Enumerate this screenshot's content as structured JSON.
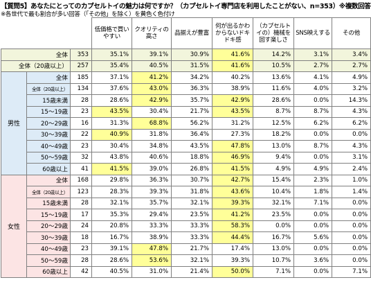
{
  "title": "【質問5】あなたにとってのカプセルトイの魅力は何ですか？（カプセルトイ専門店を利用したことがない、n=353）※複数回答可",
  "note": "※各世代で最も割合が多い回答（「その他」を除く）を黄色く色付け",
  "columns": [
    "低価格で買いやすい",
    "クオリティの高さ",
    "品揃えが豊富",
    "何が出るかわからないドキドキ感",
    "（カプセルトイの）機械を回す楽しさ",
    "SNS映えする",
    "その他"
  ],
  "groups": {
    "male": "男性",
    "female": "女性"
  },
  "highlight_color": "#ffff99",
  "rows": [
    {
      "section": "total",
      "label": "全体",
      "n": "353",
      "values": [
        "35.1%",
        "39.1%",
        "30.9%",
        "41.6%",
        "14.2%",
        "3.1%",
        "3.4%"
      ],
      "hl": 3
    },
    {
      "section": "total",
      "label": "全体（20歳以上）",
      "n": "257",
      "values": [
        "35.4%",
        "40.5%",
        "31.5%",
        "41.6%",
        "10.5%",
        "2.7%",
        "2.7%"
      ],
      "hl": 3
    },
    {
      "section": "male",
      "label": "全体",
      "n": "185",
      "values": [
        "37.1%",
        "41.2%",
        "34.2%",
        "40.2%",
        "13.6%",
        "4.1%",
        "4.9%"
      ],
      "hl": 1
    },
    {
      "section": "male",
      "label": "全体（20歳以上）",
      "n": "134",
      "values": [
        "37.6%",
        "43.0%",
        "36.3%",
        "38.9%",
        "11.6%",
        "4.0%",
        "3.2%"
      ],
      "hl": 1,
      "small": true
    },
    {
      "section": "male",
      "label": "15歳未満",
      "n": "28",
      "values": [
        "28.6%",
        "42.9%",
        "35.7%",
        "42.9%",
        "28.6%",
        "0.0%",
        "14.3%"
      ],
      "hl": [
        1,
        3
      ]
    },
    {
      "section": "male",
      "label": "15〜19歳",
      "n": "23",
      "values": [
        "43.5%",
        "30.4%",
        "21.7%",
        "43.5%",
        "8.7%",
        "8.7%",
        "4.3%"
      ],
      "hl": [
        0,
        3
      ]
    },
    {
      "section": "male",
      "label": "20〜29歳",
      "n": "16",
      "values": [
        "31.3%",
        "68.8%",
        "56.2%",
        "31.2%",
        "12.5%",
        "6.2%",
        "6.2%"
      ],
      "hl": 1
    },
    {
      "section": "male",
      "label": "30〜39歳",
      "n": "22",
      "values": [
        "40.9%",
        "31.8%",
        "36.4%",
        "27.3%",
        "18.2%",
        "0.0%",
        "0.0%"
      ],
      "hl": 0
    },
    {
      "section": "male",
      "label": "40〜49歳",
      "n": "23",
      "values": [
        "30.4%",
        "34.8%",
        "43.5%",
        "47.8%",
        "13.0%",
        "8.7%",
        "4.3%"
      ],
      "hl": 3
    },
    {
      "section": "male",
      "label": "50〜59歳",
      "n": "32",
      "values": [
        "43.8%",
        "40.6%",
        "18.8%",
        "46.9%",
        "9.4%",
        "0.0%",
        "3.1%"
      ],
      "hl": 3
    },
    {
      "section": "male",
      "label": "60歳以上",
      "n": "41",
      "values": [
        "41.5%",
        "39.0%",
        "26.8%",
        "41.5%",
        "4.9%",
        "4.9%",
        "2.4%"
      ],
      "hl": [
        0,
        3
      ]
    },
    {
      "section": "female",
      "label": "全体",
      "n": "168",
      "values": [
        "29.8%",
        "36.3%",
        "30.7%",
        "42.7%",
        "15.4%",
        "2.3%",
        "1.0%"
      ],
      "hl": 3
    },
    {
      "section": "female",
      "label": "全体（20歳以上）",
      "n": "123",
      "values": [
        "28.3%",
        "39.3%",
        "31.8%",
        "43.6%",
        "10.4%",
        "1.8%",
        "1.4%"
      ],
      "hl": 3,
      "small": true
    },
    {
      "section": "female",
      "label": "15歳未満",
      "n": "28",
      "values": [
        "32.1%",
        "35.7%",
        "32.1%",
        "39.3%",
        "32.1%",
        "7.1%",
        "0.0%"
      ],
      "hl": 3
    },
    {
      "section": "female",
      "label": "15〜19歳",
      "n": "17",
      "values": [
        "35.3%",
        "29.4%",
        "23.5%",
        "41.2%",
        "23.5%",
        "0.0%",
        "0.0%"
      ],
      "hl": 3
    },
    {
      "section": "female",
      "label": "20〜29歳",
      "n": "24",
      "values": [
        "20.8%",
        "33.3%",
        "33.3%",
        "58.3%",
        "0.0%",
        "0.0%",
        "0.0%"
      ],
      "hl": 3
    },
    {
      "section": "female",
      "label": "30〜39歳",
      "n": "18",
      "values": [
        "16.7%",
        "38.9%",
        "33.3%",
        "44.4%",
        "16.7%",
        "5.6%",
        "0.0%"
      ],
      "hl": 3
    },
    {
      "section": "female",
      "label": "40〜49歳",
      "n": "23",
      "values": [
        "39.1%",
        "47.8%",
        "21.7%",
        "17.4%",
        "13.0%",
        "0.0%",
        "0.0%"
      ],
      "hl": 1
    },
    {
      "section": "female",
      "label": "50〜59歳",
      "n": "28",
      "values": [
        "28.6%",
        "53.6%",
        "32.1%",
        "39.3%",
        "10.7%",
        "3.6%",
        "0.0%"
      ],
      "hl": 1
    },
    {
      "section": "female",
      "label": "60歳以上",
      "n": "42",
      "values": [
        "40.5%",
        "31.0%",
        "21.4%",
        "50.0%",
        "7.1%",
        "0.0%",
        "7.1%"
      ],
      "hl": 3
    }
  ]
}
